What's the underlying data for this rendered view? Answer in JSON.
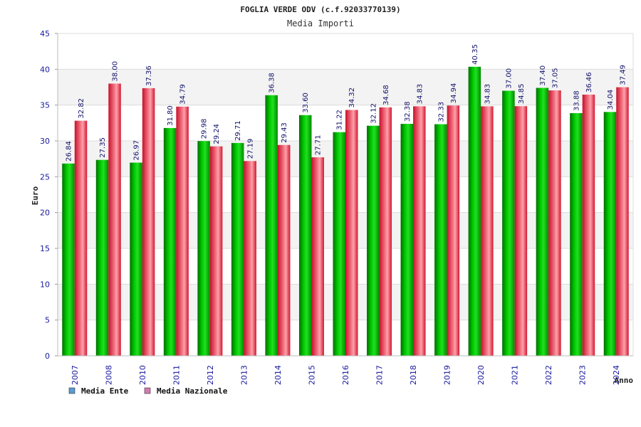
{
  "chart_data": {
    "type": "bar",
    "title": "FOGLIA VERDE ODV (c.f.92033770139)",
    "subtitle": "Media Importi",
    "xlabel": "Anno",
    "ylabel": "Euro",
    "ylim": [
      0,
      45
    ],
    "yticks": [
      0,
      5,
      10,
      15,
      20,
      25,
      30,
      35,
      40,
      45
    ],
    "grid": true,
    "legend_position": "bottom-left",
    "categories": [
      "2007",
      "2008",
      "2010",
      "2011",
      "2012",
      "2013",
      "2014",
      "2015",
      "2016",
      "2017",
      "2018",
      "2019",
      "2020",
      "2021",
      "2022",
      "2023",
      "2024"
    ],
    "series": [
      {
        "name": "Media Ente",
        "color": "#00b000",
        "legend_color": "#5b9bd5",
        "values": [
          26.84,
          27.35,
          26.97,
          31.8,
          29.98,
          29.71,
          36.38,
          33.6,
          31.22,
          32.12,
          32.38,
          32.33,
          40.35,
          37.0,
          37.4,
          33.88,
          34.04
        ],
        "labels": [
          "26.84",
          "27.35",
          "26.97",
          "31.80",
          "29.98",
          "29.71",
          "36.38",
          "33.60",
          "31.22",
          "32.12",
          "32.38",
          "32.33",
          "40.35",
          "37.00",
          "37.40",
          "33.88",
          "34.04"
        ]
      },
      {
        "name": "Media Nazionale",
        "color": "#e0203a",
        "legend_color": "#d47ab3",
        "values": [
          32.82,
          38.0,
          37.36,
          34.79,
          29.24,
          27.19,
          29.43,
          27.71,
          34.32,
          34.68,
          34.83,
          34.94,
          34.83,
          34.85,
          37.05,
          36.46,
          37.49
        ],
        "labels": [
          "32.82",
          "38.00",
          "37.36",
          "34.79",
          "29.24",
          "27.19",
          "29.43",
          "27.71",
          "34.32",
          "34.68",
          "34.83",
          "34.94",
          "34.83",
          "34.85",
          "37.05",
          "36.46",
          "37.49"
        ]
      }
    ]
  }
}
